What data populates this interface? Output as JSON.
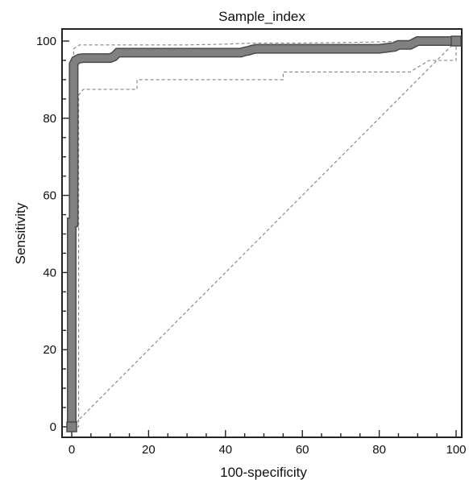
{
  "chart_data": {
    "type": "line",
    "title": "Sample_index",
    "xlabel": "100-specificity",
    "ylabel": "Sensitivity",
    "xlim": [
      0,
      100
    ],
    "ylim": [
      0,
      100
    ],
    "x_ticks": [
      "0",
      "20",
      "40",
      "60",
      "80",
      "100"
    ],
    "y_ticks": [
      "0",
      "20",
      "40",
      "60",
      "80",
      "100"
    ],
    "grid": false,
    "legend": "none",
    "colors": {
      "roc": "#808080",
      "roc_edge": "#4a4a4a",
      "ci": "#808080",
      "diagonal": "#808080",
      "axes": "#222222"
    },
    "series": [
      {
        "style": "thick-square-markers",
        "x": [
          0,
          0,
          0,
          0.5,
          0.5,
          1,
          2,
          3,
          5,
          8,
          10,
          11,
          12,
          15,
          20,
          30,
          40,
          44,
          45,
          46,
          47,
          48,
          50,
          60,
          70,
          80,
          84,
          85,
          88,
          89,
          90,
          92,
          95,
          97,
          100
        ],
        "y": [
          0,
          50,
          53,
          53,
          94,
          95,
          95.5,
          95.6,
          95.6,
          95.6,
          95.6,
          96,
          97,
          97,
          97,
          97,
          97,
          97,
          97.3,
          97.5,
          97.8,
          98,
          98,
          98,
          98,
          98,
          98.5,
          99,
          99,
          99.5,
          100,
          100,
          100,
          100,
          100
        ]
      },
      {
        "style": "dashed-upper-ci",
        "x": [
          0,
          0.5,
          2,
          5,
          10,
          20,
          30,
          40,
          45,
          50,
          60,
          70,
          80,
          90,
          95,
          100
        ],
        "y": [
          0,
          98,
          99,
          99,
          99,
          99,
          99,
          99.2,
          99.4,
          99.5,
          99.5,
          99.6,
          99.8,
          100,
          100,
          100
        ]
      },
      {
        "style": "dashed-lower-ci",
        "x": [
          0,
          1.8,
          1.8,
          3,
          10,
          10,
          15,
          17,
          17,
          30,
          40,
          55,
          55,
          70,
          88,
          88,
          93,
          100,
          100
        ],
        "y": [
          0,
          0,
          86,
          87.5,
          87.5,
          87.5,
          87.5,
          87.5,
          90,
          90,
          90,
          90,
          92,
          92,
          92,
          92,
          95,
          95,
          100
        ]
      },
      {
        "style": "dashed-diagonal",
        "x": [
          0,
          100
        ],
        "y": [
          0,
          100
        ]
      }
    ]
  }
}
